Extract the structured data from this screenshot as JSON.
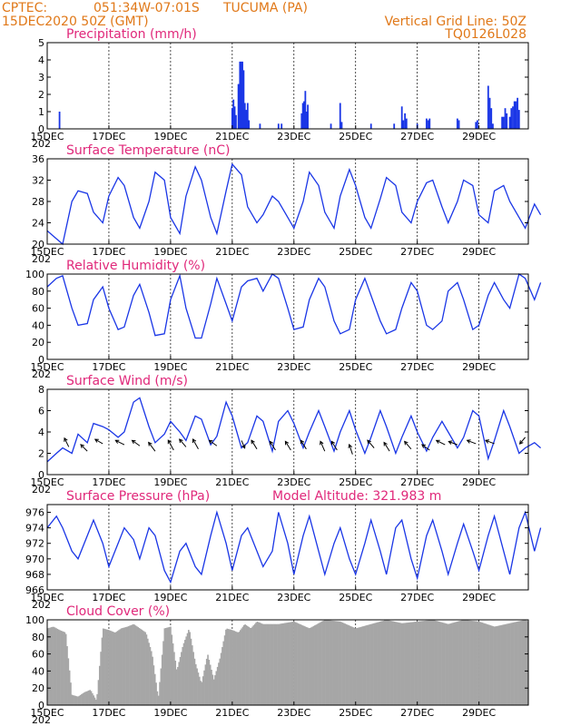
{
  "header": {
    "source": "CPTEC:",
    "coords": "051:34W-07:01S",
    "location": "TUCUMA (PA)",
    "start": "15DEC2020 50Z (GMT)",
    "grid_note": "Vertical Grid Line: 50Z",
    "model_code": "TQ0126L028",
    "model_altitude": "Model Altitude: 321.983 m"
  },
  "colors": {
    "header": "#e07818",
    "title": "#e0287a",
    "series": "#1a36e6",
    "cloud": "#a6a6a6",
    "arrow": "#000000"
  },
  "x_ticks": [
    "15DEC",
    "17DEC",
    "19DEC",
    "21DEC",
    "23DEC",
    "25DEC",
    "27DEC",
    "29DEC"
  ],
  "x_clip_label": "202",
  "chart_data": [
    {
      "id": "precip",
      "type": "bar",
      "title": "Precipitation (mm/h)",
      "ylim": [
        0,
        5
      ],
      "yticks": [
        "0",
        "1",
        "2",
        "3",
        "4",
        "5"
      ],
      "x_unit": "days since 15DEC 00Z (hourly)",
      "points": [
        [
          0.4,
          1.0
        ],
        [
          6.0,
          1.2
        ],
        [
          6.04,
          1.7
        ],
        [
          6.08,
          1.3
        ],
        [
          6.12,
          0.8
        ],
        [
          6.2,
          2.6
        ],
        [
          6.25,
          3.9
        ],
        [
          6.29,
          3.9
        ],
        [
          6.33,
          3.9
        ],
        [
          6.37,
          3.4
        ],
        [
          6.41,
          1.5
        ],
        [
          6.45,
          1.1
        ],
        [
          6.5,
          1.5
        ],
        [
          6.54,
          0.5
        ],
        [
          6.9,
          0.3
        ],
        [
          7.5,
          0.3
        ],
        [
          7.6,
          0.3
        ],
        [
          8.25,
          0.9
        ],
        [
          8.29,
          1.5
        ],
        [
          8.33,
          1.6
        ],
        [
          8.37,
          2.2
        ],
        [
          8.41,
          1.0
        ],
        [
          8.45,
          1.4
        ],
        [
          9.2,
          0.3
        ],
        [
          9.5,
          1.5
        ],
        [
          9.55,
          0.4
        ],
        [
          10.5,
          0.3
        ],
        [
          11.25,
          0.3
        ],
        [
          11.5,
          1.3
        ],
        [
          11.55,
          0.5
        ],
        [
          11.6,
          0.9
        ],
        [
          11.65,
          0.6
        ],
        [
          12.0,
          0.3
        ],
        [
          12.3,
          0.6
        ],
        [
          12.35,
          0.5
        ],
        [
          12.4,
          0.6
        ],
        [
          13.3,
          0.6
        ],
        [
          13.35,
          0.5
        ],
        [
          13.9,
          0.4
        ],
        [
          13.95,
          0.5
        ],
        [
          14.3,
          2.5
        ],
        [
          14.35,
          1.8
        ],
        [
          14.4,
          1.2
        ],
        [
          14.45,
          0.3
        ],
        [
          14.75,
          0.7
        ],
        [
          14.8,
          0.7
        ],
        [
          14.85,
          1.2
        ],
        [
          14.9,
          0.9
        ],
        [
          15.0,
          0.7
        ],
        [
          15.05,
          1.2
        ],
        [
          15.1,
          1.3
        ],
        [
          15.15,
          1.6
        ],
        [
          15.2,
          1.6
        ],
        [
          15.25,
          1.8
        ],
        [
          15.3,
          1.1
        ]
      ]
    },
    {
      "id": "temp",
      "type": "line",
      "title": "Surface Temperature (nC)",
      "ylim": [
        20,
        36
      ],
      "yticks": [
        "20",
        "24",
        "28",
        "32",
        "36"
      ],
      "x": [
        0,
        0.3,
        0.5,
        0.8,
        1.0,
        1.3,
        1.5,
        1.8,
        2.0,
        2.3,
        2.5,
        2.8,
        3.0,
        3.3,
        3.5,
        3.8,
        4.0,
        4.3,
        4.5,
        4.8,
        5.0,
        5.3,
        5.5,
        5.8,
        6.0,
        6.3,
        6.5,
        6.8,
        7.0,
        7.3,
        7.5,
        7.8,
        8.0,
        8.3,
        8.5,
        8.8,
        9.0,
        9.3,
        9.5,
        9.8,
        10.0,
        10.3,
        10.5,
        10.8,
        11.0,
        11.3,
        11.5,
        11.8,
        12.0,
        12.3,
        12.5,
        12.8,
        13.0,
        13.3,
        13.5,
        13.8,
        14.0,
        14.3,
        14.5,
        14.8,
        15.0,
        15.3,
        15.5,
        15.8,
        16.0
      ],
      "values": [
        22.5,
        21,
        20,
        28,
        30,
        29.5,
        26,
        24,
        29,
        32.5,
        31,
        25,
        23,
        28,
        33.5,
        32,
        25,
        22,
        29,
        34.5,
        32,
        25,
        22,
        30,
        35,
        33,
        27,
        24,
        25.5,
        29,
        28,
        25,
        23,
        28,
        33.5,
        31,
        26,
        23,
        29,
        34,
        31,
        25,
        23,
        28.5,
        32.5,
        31,
        26,
        24,
        28,
        31.5,
        32,
        27,
        24,
        28,
        32,
        31,
        25.5,
        24,
        30,
        31,
        28,
        25,
        23,
        27.5,
        25.5
      ]
    },
    {
      "id": "rh",
      "type": "line",
      "title": "Relative Humidity (%)",
      "ylim": [
        0,
        100
      ],
      "yticks": [
        "0",
        "20",
        "40",
        "60",
        "80",
        "100"
      ],
      "x": [
        0,
        0.3,
        0.5,
        0.8,
        1.0,
        1.3,
        1.5,
        1.8,
        2.0,
        2.3,
        2.5,
        2.8,
        3.0,
        3.3,
        3.5,
        3.8,
        4.0,
        4.3,
        4.5,
        4.8,
        5.0,
        5.3,
        5.5,
        5.8,
        6.0,
        6.3,
        6.5,
        6.8,
        7.0,
        7.3,
        7.5,
        7.8,
        8.0,
        8.3,
        8.5,
        8.8,
        9.0,
        9.3,
        9.5,
        9.8,
        10.0,
        10.3,
        10.5,
        10.8,
        11.0,
        11.3,
        11.5,
        11.8,
        12.0,
        12.3,
        12.5,
        12.8,
        13.0,
        13.3,
        13.5,
        13.8,
        14.0,
        14.3,
        14.5,
        14.8,
        15.0,
        15.3,
        15.5,
        15.8,
        16.0
      ],
      "values": [
        85,
        95,
        98,
        60,
        40,
        42,
        70,
        85,
        60,
        35,
        38,
        75,
        88,
        55,
        28,
        30,
        70,
        98,
        60,
        25,
        25,
        65,
        95,
        65,
        45,
        85,
        92,
        95,
        80,
        100,
        95,
        60,
        35,
        38,
        70,
        95,
        85,
        45,
        30,
        35,
        70,
        95,
        75,
        45,
        30,
        35,
        60,
        90,
        80,
        40,
        35,
        45,
        80,
        90,
        70,
        35,
        40,
        75,
        90,
        70,
        60,
        100,
        95,
        70,
        90
      ]
    },
    {
      "id": "wind",
      "type": "line",
      "title": "Surface Wind (m/s)",
      "ylim": [
        0,
        8
      ],
      "yticks": [
        "0",
        "2",
        "4",
        "6",
        "8"
      ],
      "x": [
        0,
        0.3,
        0.5,
        0.8,
        1.0,
        1.3,
        1.5,
        1.8,
        2.0,
        2.3,
        2.5,
        2.8,
        3.0,
        3.3,
        3.5,
        3.8,
        4.0,
        4.3,
        4.5,
        4.8,
        5.0,
        5.3,
        5.5,
        5.8,
        6.0,
        6.3,
        6.5,
        6.8,
        7.0,
        7.3,
        7.5,
        7.8,
        8.0,
        8.3,
        8.5,
        8.8,
        9.0,
        9.3,
        9.5,
        9.8,
        10.0,
        10.3,
        10.5,
        10.8,
        11.0,
        11.3,
        11.5,
        11.8,
        12.0,
        12.3,
        12.5,
        12.8,
        13.0,
        13.3,
        13.5,
        13.8,
        14.0,
        14.3,
        14.5,
        14.8,
        15.0,
        15.3,
        15.5,
        15.8,
        16.0
      ],
      "values": [
        1.2,
        2.0,
        2.5,
        2.0,
        3.8,
        3.0,
        4.8,
        4.5,
        4.2,
        3.5,
        4.0,
        6.8,
        7.2,
        4.5,
        3.0,
        3.8,
        5.0,
        4.0,
        3.2,
        5.5,
        5.2,
        2.8,
        3.6,
        6.8,
        5.5,
        2.5,
        3.0,
        5.5,
        5.0,
        2.2,
        5.0,
        6.0,
        4.8,
        2.5,
        4.0,
        6.0,
        4.5,
        2.2,
        4.0,
        6.0,
        4.2,
        2.0,
        3.5,
        6.0,
        4.5,
        2.0,
        3.5,
        5.5,
        4.0,
        2.2,
        3.5,
        5.0,
        4.0,
        2.5,
        3.5,
        6.0,
        5.5,
        1.5,
        3.2,
        6.0,
        4.5,
        2.0,
        2.5,
        3.0,
        2.5
      ],
      "arrows": [
        [
          0.7,
          2.6,
          -0.4,
          0.8
        ],
        [
          1.3,
          2.2,
          -0.6,
          0.6
        ],
        [
          1.8,
          2.9,
          -0.7,
          0.4
        ],
        [
          2.5,
          2.8,
          -0.8,
          0.4
        ],
        [
          3.0,
          2.7,
          -0.7,
          0.5
        ],
        [
          3.5,
          2.2,
          -0.6,
          0.8
        ],
        [
          4.1,
          2.3,
          -0.5,
          0.9
        ],
        [
          4.5,
          2.6,
          -0.6,
          0.7
        ],
        [
          4.9,
          2.4,
          -0.5,
          0.9
        ],
        [
          5.5,
          2.7,
          -0.7,
          0.5
        ],
        [
          6.3,
          3.2,
          0.3,
          -0.7
        ],
        [
          6.8,
          2.4,
          -0.5,
          0.8
        ],
        [
          7.4,
          2.3,
          -0.5,
          0.8
        ],
        [
          7.9,
          2.3,
          -0.5,
          0.8
        ],
        [
          8.4,
          2.4,
          -0.5,
          0.8
        ],
        [
          9.0,
          2.2,
          -0.4,
          0.9
        ],
        [
          9.4,
          2.3,
          -0.5,
          0.8
        ],
        [
          9.9,
          1.9,
          -0.3,
          0.9
        ],
        [
          10.6,
          2.5,
          -0.6,
          0.7
        ],
        [
          11.1,
          2.2,
          -0.5,
          0.8
        ],
        [
          11.8,
          2.4,
          -0.6,
          0.7
        ],
        [
          12.4,
          2.3,
          -0.7,
          0.5
        ],
        [
          12.9,
          2.8,
          -0.8,
          0.4
        ],
        [
          13.3,
          2.8,
          -0.8,
          0.3
        ],
        [
          13.9,
          2.9,
          -0.8,
          0.3
        ],
        [
          14.5,
          2.9,
          -0.8,
          0.3
        ],
        [
          15.5,
          3.5,
          -0.5,
          -0.6
        ]
      ]
    },
    {
      "id": "press",
      "type": "line",
      "title": "Surface Pressure (hPa)",
      "ylim": [
        966,
        977
      ],
      "yticks": [
        "966",
        "968",
        "970",
        "972",
        "974",
        "976"
      ],
      "x": [
        0,
        0.3,
        0.5,
        0.8,
        1.0,
        1.3,
        1.5,
        1.8,
        2.0,
        2.3,
        2.5,
        2.8,
        3.0,
        3.3,
        3.5,
        3.8,
        4.0,
        4.3,
        4.5,
        4.8,
        5.0,
        5.3,
        5.5,
        5.8,
        6.0,
        6.3,
        6.5,
        6.8,
        7.0,
        7.3,
        7.5,
        7.8,
        8.0,
        8.3,
        8.5,
        8.8,
        9.0,
        9.3,
        9.5,
        9.8,
        10.0,
        10.3,
        10.5,
        10.8,
        11.0,
        11.3,
        11.5,
        11.8,
        12.0,
        12.3,
        12.5,
        12.8,
        13.0,
        13.3,
        13.5,
        13.8,
        14.0,
        14.3,
        14.5,
        14.8,
        15.0,
        15.3,
        15.5,
        15.8,
        16.0
      ],
      "values": [
        974,
        975.5,
        974,
        971,
        970,
        973,
        975,
        972,
        969,
        972,
        974,
        972.5,
        970,
        974,
        973,
        968.5,
        967,
        971,
        972,
        969,
        968,
        973,
        976,
        972,
        968.5,
        973,
        974,
        971,
        969,
        971,
        976,
        972,
        968,
        973,
        975.5,
        971,
        968,
        972,
        974,
        970,
        968,
        972,
        975,
        971,
        968,
        974,
        975,
        970,
        967.5,
        973,
        975,
        971,
        968,
        972,
        974.5,
        971,
        968.5,
        973,
        975.5,
        971,
        968,
        974,
        976,
        971,
        974
      ]
    },
    {
      "id": "cloud",
      "type": "area",
      "title": "Cloud Cover (%)",
      "ylim": [
        0,
        100
      ],
      "yticks": [
        "0",
        "20",
        "40",
        "60",
        "80",
        "100"
      ],
      "x": [
        0,
        0.2,
        0.4,
        0.6,
        0.8,
        1.0,
        1.2,
        1.4,
        1.6,
        1.8,
        2.0,
        2.2,
        2.4,
        2.6,
        2.8,
        3.0,
        3.2,
        3.4,
        3.6,
        3.8,
        4.0,
        4.2,
        4.4,
        4.6,
        4.8,
        5.0,
        5.2,
        5.4,
        5.6,
        5.8,
        6.0,
        6.2,
        6.4,
        6.6,
        6.8,
        7.0,
        7.5,
        8.0,
        8.5,
        9.0,
        9.5,
        10.0,
        10.5,
        11.0,
        11.5,
        12.0,
        12.5,
        13.0,
        13.5,
        14.0,
        14.5,
        15.0,
        15.5,
        16.0
      ],
      "values": [
        90,
        92,
        88,
        85,
        12,
        10,
        15,
        18,
        5,
        90,
        88,
        85,
        90,
        92,
        95,
        90,
        85,
        60,
        8,
        90,
        92,
        40,
        70,
        90,
        50,
        25,
        60,
        30,
        55,
        90,
        88,
        85,
        95,
        90,
        98,
        95,
        95,
        98,
        90,
        100,
        98,
        90,
        95,
        100,
        96,
        98,
        100,
        95,
        100,
        98,
        92,
        96,
        100,
        90
      ]
    }
  ]
}
